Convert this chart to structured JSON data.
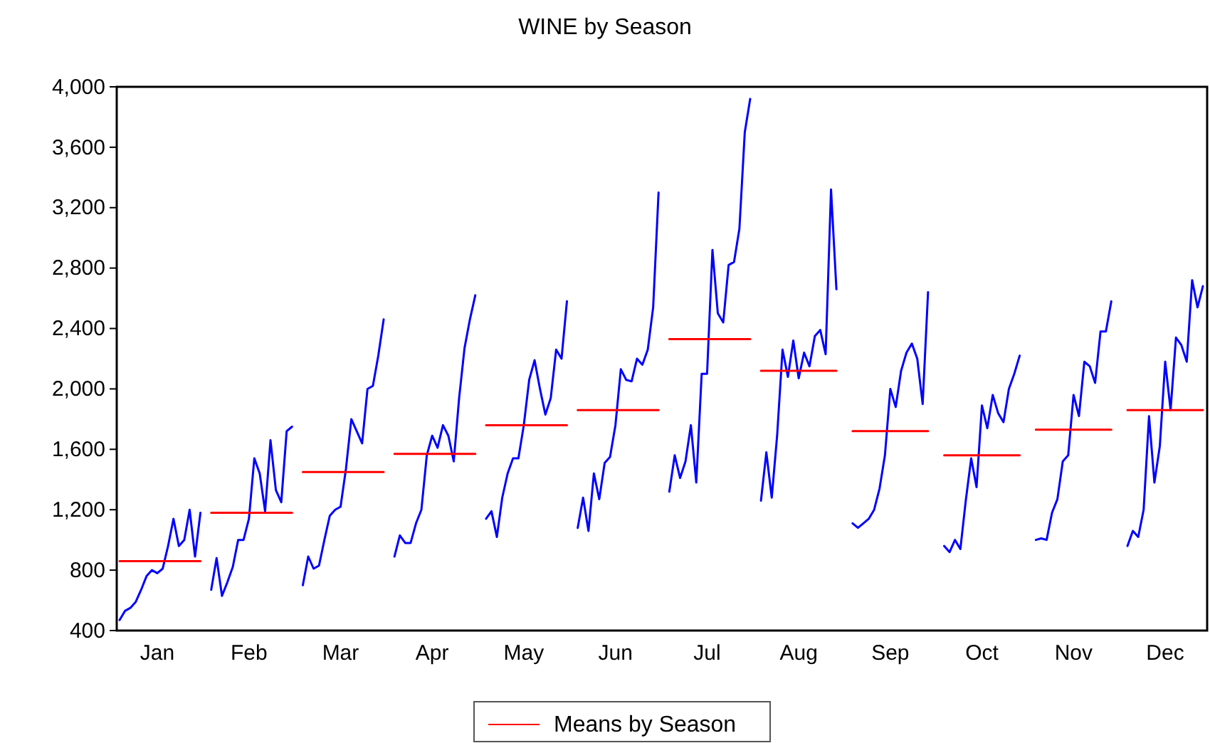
{
  "chart_data": {
    "type": "line",
    "title": "WINE by Season",
    "legend": "bottom",
    "categories": [
      null,
      null,
      null,
      null,
      null,
      null,
      null,
      "Jan",
      null,
      null,
      null,
      null,
      null,
      null,
      null,
      null,
      null,
      null,
      null,
      null,
      null,
      null,
      null,
      null,
      "Feb",
      null,
      null,
      null,
      null,
      null,
      null,
      null,
      null,
      null,
      null,
      null,
      null,
      null,
      null,
      null,
      null,
      "Mar",
      null,
      null,
      null,
      null,
      null,
      null,
      null,
      null,
      null,
      null,
      null,
      null,
      null,
      null,
      null,
      null,
      "Apr",
      null,
      null,
      null,
      null,
      null,
      null,
      null,
      null,
      null,
      null,
      null,
      null,
      null,
      null,
      null,
      null,
      "May",
      null,
      null,
      null,
      null,
      null,
      null,
      null,
      null,
      null,
      null,
      null,
      null,
      null,
      null,
      null,
      null,
      "Jun",
      null,
      null,
      null,
      null,
      null,
      null,
      null,
      null,
      null,
      null,
      null,
      null,
      null,
      null,
      null,
      null,
      "Jul",
      null,
      null,
      null,
      null,
      null,
      null,
      null,
      null,
      null,
      null,
      null,
      null,
      null,
      null,
      null,
      null,
      "Aug",
      null,
      null,
      null,
      null,
      null,
      null,
      null,
      null,
      null,
      null,
      null,
      null,
      null,
      null,
      null,
      null,
      "Sep",
      null,
      null,
      null,
      null,
      null,
      null,
      null,
      null,
      null,
      null,
      null,
      null,
      null,
      null,
      null,
      null,
      "Oct",
      null,
      null,
      null,
      null,
      null,
      null,
      null,
      null,
      null,
      null,
      null,
      null,
      null,
      null,
      null,
      null,
      "Nov",
      null,
      null,
      null,
      null,
      null,
      null,
      null,
      null,
      null,
      null,
      null,
      null,
      null,
      null,
      null,
      null,
      "Dec",
      null,
      null,
      null,
      null,
      null,
      null,
      null,
      null,
      null
    ],
    "ylim": [
      400,
      4000
    ],
    "yticks": [
      400,
      800,
      {
        "value": 1200,
        "label": "1,200"
      },
      {
        "value": 1600,
        "label": "1,600"
      },
      {
        "value": 2000,
        "label": "2,000"
      },
      {
        "value": 2400,
        "label": "2,400"
      },
      {
        "value": 2800,
        "label": "2,800"
      },
      {
        "value": 3200,
        "label": "3,200"
      },
      {
        "value": 3600,
        "label": "3,600"
      },
      {
        "value": 4000,
        "label": "4,000"
      }
    ],
    "series": [
      {
        "color": "#0000ff",
        "values": [
          470,
          530,
          550,
          590,
          670,
          760,
          800,
          780,
          810,
          960,
          1140,
          960,
          1000,
          1200,
          890,
          1180,
          null,
          670,
          880,
          630,
          720,
          820,
          1000,
          1000,
          1140,
          1540,
          1440,
          1190,
          1660,
          1330,
          1250,
          1720,
          1750,
          null,
          700,
          890,
          810,
          830,
          1000,
          1160,
          1200,
          1220,
          1470,
          1800,
          1720,
          1640,
          2000,
          2020,
          2220,
          2460,
          null,
          890,
          1030,
          980,
          980,
          1110,
          1200,
          1560,
          1690,
          1610,
          1760,
          1690,
          1520,
          1940,
          2270,
          2460,
          2620,
          null,
          1140,
          1190,
          1020,
          1280,
          1440,
          1540,
          1540,
          1760,
          2060,
          2190,
          2000,
          1830,
          1940,
          2260,
          2200,
          2580,
          null,
          1080,
          1280,
          1060,
          1440,
          1270,
          1510,
          1550,
          1760,
          2130,
          2060,
          2050,
          2200,
          2160,
          2260,
          2540,
          3300,
          null,
          1320,
          1560,
          1410,
          1520,
          1760,
          1380,
          2100,
          2100,
          2920,
          2500,
          2440,
          2820,
          2840,
          3060,
          3700,
          3920,
          null,
          1260,
          1580,
          1280,
          1690,
          2260,
          2080,
          2320,
          2070,
          2240,
          2150,
          2350,
          2390,
          2230,
          3320,
          2660,
          null,
          null,
          1110,
          1080,
          1110,
          1140,
          1200,
          1340,
          1560,
          2000,
          1880,
          2120,
          2240,
          2300,
          2200,
          1900,
          2640,
          null,
          null,
          960,
          920,
          1000,
          940,
          1260,
          1540,
          1350,
          1890,
          1740,
          1960,
          1840,
          1780,
          2000,
          2100,
          2220,
          null,
          null,
          1000,
          1010,
          1000,
          1180,
          1270,
          1520,
          1560,
          1960,
          1820,
          2180,
          2150,
          2040,
          2380,
          2380,
          2580,
          null,
          null,
          960,
          1060,
          1020,
          1200,
          1820,
          1380,
          1620,
          2180,
          1860,
          2340,
          2290,
          2180,
          2720,
          2540,
          2680,
          null,
          null
        ]
      },
      {
        "name": "Means by Season",
        "color": "#ff0000",
        "values": [
          860,
          860,
          860,
          860,
          860,
          860,
          860,
          860,
          860,
          860,
          860,
          860,
          860,
          860,
          860,
          860,
          null,
          1180,
          1180,
          1180,
          1180,
          1180,
          1180,
          1180,
          1180,
          1180,
          1180,
          1180,
          1180,
          1180,
          1180,
          1180,
          1180,
          null,
          1450,
          1450,
          1450,
          1450,
          1450,
          1450,
          1450,
          1450,
          1450,
          1450,
          1450,
          1450,
          1450,
          1450,
          1450,
          1450,
          null,
          1570,
          1570,
          1570,
          1570,
          1570,
          1570,
          1570,
          1570,
          1570,
          1570,
          1570,
          1570,
          1570,
          1570,
          1570,
          1570,
          null,
          1760,
          1760,
          1760,
          1760,
          1760,
          1760,
          1760,
          1760,
          1760,
          1760,
          1760,
          1760,
          1760,
          1760,
          1760,
          1760,
          null,
          1860,
          1860,
          1860,
          1860,
          1860,
          1860,
          1860,
          1860,
          1860,
          1860,
          1860,
          1860,
          1860,
          1860,
          1860,
          1860,
          null,
          2330,
          2330,
          2330,
          2330,
          2330,
          2330,
          2330,
          2330,
          2330,
          2330,
          2330,
          2330,
          2330,
          2330,
          2330,
          2330,
          null,
          2120,
          2120,
          2120,
          2120,
          2120,
          2120,
          2120,
          2120,
          2120,
          2120,
          2120,
          2120,
          2120,
          2120,
          2120,
          null,
          null,
          1720,
          1720,
          1720,
          1720,
          1720,
          1720,
          1720,
          1720,
          1720,
          1720,
          1720,
          1720,
          1720,
          1720,
          1720,
          null,
          null,
          1560,
          1560,
          1560,
          1560,
          1560,
          1560,
          1560,
          1560,
          1560,
          1560,
          1560,
          1560,
          1560,
          1560,
          1560,
          null,
          null,
          1730,
          1730,
          1730,
          1730,
          1730,
          1730,
          1730,
          1730,
          1730,
          1730,
          1730,
          1730,
          1730,
          1730,
          1730,
          null,
          null,
          1860,
          1860,
          1860,
          1860,
          1860,
          1860,
          1860,
          1860,
          1860,
          1860,
          1860,
          1860,
          1860,
          1860,
          1860,
          null,
          null
        ]
      }
    ]
  }
}
